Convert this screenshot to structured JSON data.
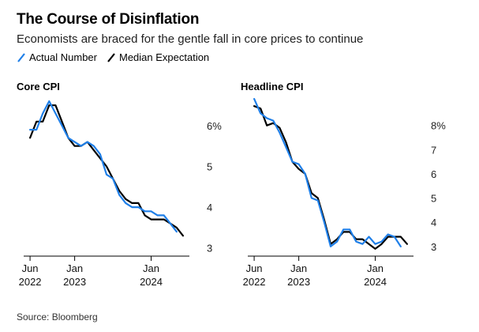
{
  "header": {
    "title": "The Course of Disinflation",
    "subtitle": "Economists are braced for the gentle fall in core prices to continue"
  },
  "legend": [
    {
      "label": "Actual Number",
      "color": "#1f7fe8"
    },
    {
      "label": "Median Expectation",
      "color": "#000000"
    }
  ],
  "source": "Source: Bloomberg",
  "colors": {
    "actual": "#1f7fe8",
    "expected": "#000000",
    "axis": "#000000",
    "tick": "#555555"
  },
  "chart_data": [
    {
      "type": "line",
      "title": "Core CPI",
      "ylim": [
        2.8,
        6.6
      ],
      "xlim": [
        "2022-05",
        "2024-07"
      ],
      "y_ticks": [
        3,
        4,
        5,
        6
      ],
      "y_tick_labels": [
        "3",
        "4",
        "5",
        "6%"
      ],
      "x_ticks": [
        {
          "value": "2022-06",
          "label": [
            "Jun",
            "2022"
          ]
        },
        {
          "value": "2023-01",
          "label": [
            "Jan",
            "2023"
          ]
        },
        {
          "value": "2024-01",
          "label": [
            "Jan",
            "2024"
          ]
        }
      ],
      "series": [
        {
          "name": "Actual Number",
          "key": "actual",
          "x": [
            "2022-06",
            "2022-07",
            "2022-08",
            "2022-09",
            "2022-10",
            "2022-11",
            "2022-12",
            "2023-01",
            "2023-02",
            "2023-03",
            "2023-04",
            "2023-05",
            "2023-06",
            "2023-07",
            "2023-08",
            "2023-09",
            "2023-10",
            "2023-11",
            "2023-12",
            "2024-01",
            "2024-02",
            "2024-03",
            "2024-04",
            "2024-05"
          ],
          "y": [
            5.9,
            5.9,
            6.3,
            6.6,
            6.3,
            6.0,
            5.7,
            5.6,
            5.5,
            5.6,
            5.5,
            5.3,
            4.8,
            4.7,
            4.3,
            4.1,
            4.0,
            4.0,
            3.9,
            3.9,
            3.8,
            3.8,
            3.6,
            3.4
          ]
        },
        {
          "name": "Median Expectation",
          "key": "expected",
          "x": [
            "2022-06",
            "2022-07",
            "2022-08",
            "2022-09",
            "2022-10",
            "2022-11",
            "2022-12",
            "2023-01",
            "2023-02",
            "2023-03",
            "2023-04",
            "2023-05",
            "2023-06",
            "2023-07",
            "2023-08",
            "2023-09",
            "2023-10",
            "2023-11",
            "2023-12",
            "2024-01",
            "2024-02",
            "2024-03",
            "2024-04",
            "2024-05",
            "2024-06"
          ],
          "y": [
            5.7,
            6.1,
            6.1,
            6.5,
            6.5,
            6.1,
            5.7,
            5.5,
            5.5,
            5.6,
            5.4,
            5.2,
            5.0,
            4.7,
            4.4,
            4.2,
            4.1,
            4.1,
            3.8,
            3.7,
            3.7,
            3.7,
            3.6,
            3.5,
            3.3
          ]
        }
      ]
    },
    {
      "type": "line",
      "title": "Headline CPI",
      "ylim": [
        2.6,
        9.2
      ],
      "xlim": [
        "2022-05",
        "2024-07"
      ],
      "y_ticks": [
        3,
        4,
        5,
        6,
        7,
        8
      ],
      "y_tick_labels": [
        "3",
        "4",
        "5",
        "6",
        "7",
        "8%"
      ],
      "x_ticks": [
        {
          "value": "2022-06",
          "label": [
            "Jun",
            "2022"
          ]
        },
        {
          "value": "2023-01",
          "label": [
            "Jan",
            "2023"
          ]
        },
        {
          "value": "2024-01",
          "label": [
            "Jan",
            "2024"
          ]
        }
      ],
      "series": [
        {
          "name": "Actual Number",
          "key": "actual",
          "x": [
            "2022-06",
            "2022-07",
            "2022-08",
            "2022-09",
            "2022-10",
            "2022-11",
            "2022-12",
            "2023-01",
            "2023-02",
            "2023-03",
            "2023-04",
            "2023-05",
            "2023-06",
            "2023-07",
            "2023-08",
            "2023-09",
            "2023-10",
            "2023-11",
            "2023-12",
            "2024-01",
            "2024-02",
            "2024-03",
            "2024-04",
            "2024-05"
          ],
          "y": [
            9.1,
            8.5,
            8.3,
            8.2,
            7.7,
            7.1,
            6.5,
            6.4,
            6.0,
            5.0,
            4.9,
            4.0,
            3.0,
            3.2,
            3.7,
            3.7,
            3.2,
            3.1,
            3.4,
            3.1,
            3.2,
            3.5,
            3.4,
            3.0
          ]
        },
        {
          "name": "Median Expectation",
          "key": "expected",
          "x": [
            "2022-06",
            "2022-07",
            "2022-08",
            "2022-09",
            "2022-10",
            "2022-11",
            "2022-12",
            "2023-01",
            "2023-02",
            "2023-03",
            "2023-04",
            "2023-05",
            "2023-06",
            "2023-07",
            "2023-08",
            "2023-09",
            "2023-10",
            "2023-11",
            "2023-12",
            "2024-01",
            "2024-02",
            "2024-03",
            "2024-04",
            "2024-05",
            "2024-06"
          ],
          "y": [
            8.8,
            8.7,
            8.0,
            8.1,
            7.9,
            7.3,
            6.5,
            6.2,
            6.0,
            5.2,
            5.0,
            4.1,
            3.1,
            3.3,
            3.6,
            3.6,
            3.3,
            3.3,
            3.1,
            2.9,
            3.1,
            3.4,
            3.4,
            3.4,
            3.1
          ]
        }
      ]
    }
  ]
}
